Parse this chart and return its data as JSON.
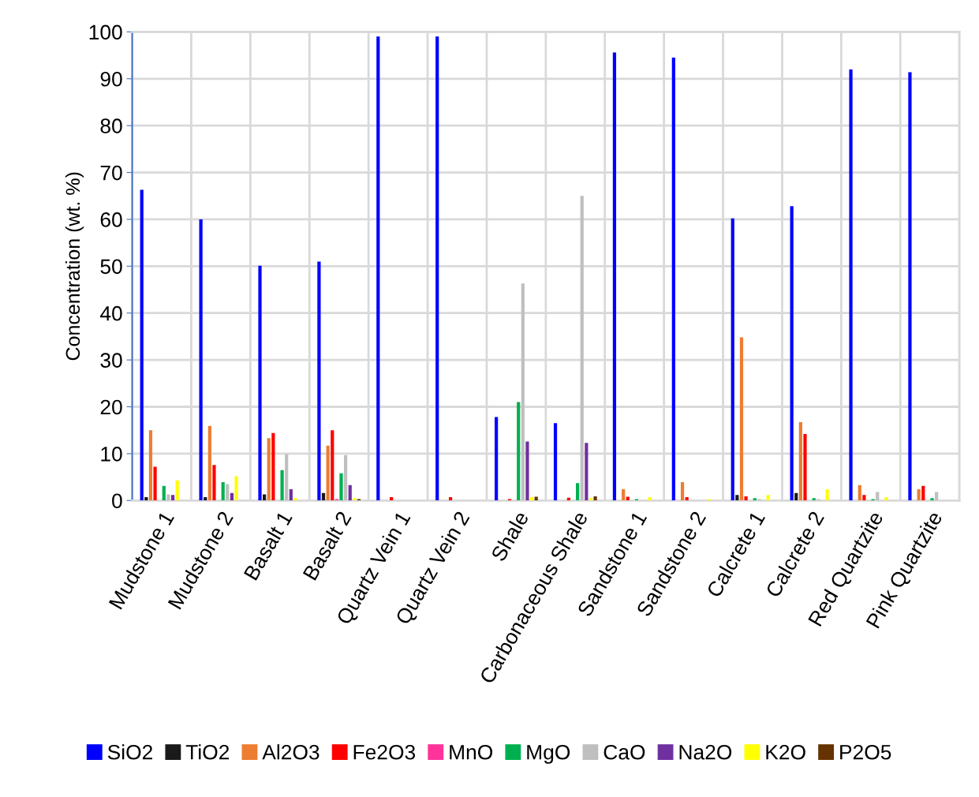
{
  "chart_data": {
    "type": "bar",
    "ylabel": "Concentration (wt. %)",
    "categories": [
      "Mudstone 1",
      "Mudstone 2",
      "Basalt 1",
      "Basalt 2",
      "Quartz Vein 1",
      "Quartz Vein 2",
      "Shale",
      "Carbonaceous Shale",
      "Sandstone 1",
      "Sandstone 2",
      "Calcrete 1",
      "Calcrete 2",
      "Red Quartzite",
      "Pink Quartzite"
    ],
    "series": [
      {
        "name": "SiO2",
        "color": "#0000ff",
        "values": [
          66.3,
          60,
          50.1,
          51,
          99,
          99,
          17.8,
          16.5,
          95.6,
          94.5,
          60.2,
          62.8,
          92,
          91.4
        ]
      },
      {
        "name": "TiO2",
        "color": "#1a1a1a",
        "values": [
          0.7,
          0.7,
          1.3,
          1.6,
          0,
          0,
          0,
          0,
          0,
          0,
          1.2,
          1.6,
          0,
          0
        ]
      },
      {
        "name": "Al2O3",
        "color": "#ed7d31",
        "values": [
          15,
          15.9,
          13.3,
          11.7,
          0,
          0,
          0,
          0,
          2.4,
          3.9,
          34.8,
          16.7,
          3.3,
          2.4
        ]
      },
      {
        "name": "Fe2O3",
        "color": "#ff0000",
        "values": [
          7.2,
          7.6,
          14.4,
          15,
          0.7,
          0.7,
          0.3,
          0.6,
          0.8,
          0.7,
          0.9,
          14.2,
          1.2,
          3.1
        ]
      },
      {
        "name": "MnO",
        "color": "#ff3399",
        "values": [
          0,
          0,
          0,
          0.3,
          0,
          0,
          0,
          0,
          0,
          0,
          0,
          0,
          0,
          0
        ]
      },
      {
        "name": "MgO",
        "color": "#00b050",
        "values": [
          3.1,
          3.9,
          6.5,
          5.8,
          0,
          0,
          21,
          3.7,
          0.3,
          0,
          0.5,
          0.5,
          0.3,
          0.5
        ]
      },
      {
        "name": "CaO",
        "color": "#bfbfbf",
        "values": [
          1.3,
          3.5,
          9.9,
          9.7,
          0,
          0,
          46.3,
          65,
          0,
          0,
          0.3,
          0.3,
          1.8,
          1.8
        ]
      },
      {
        "name": "Na2O",
        "color": "#7030a0",
        "values": [
          1.2,
          1.6,
          2.4,
          3.3,
          0,
          0,
          12.6,
          12.3,
          0,
          0,
          0,
          0,
          0,
          0
        ]
      },
      {
        "name": "K2O",
        "color": "#ffff00",
        "values": [
          4.3,
          5.2,
          0.5,
          0.5,
          0,
          0,
          0.7,
          0.5,
          0.7,
          0.3,
          1.2,
          2.4,
          0.7,
          0
        ]
      },
      {
        "name": "P2O5",
        "color": "#663300",
        "values": [
          0,
          0,
          0,
          0.3,
          0,
          0,
          0.8,
          0.9,
          0,
          0,
          0,
          0,
          0,
          0
        ]
      }
    ],
    "ylim": [
      0,
      100
    ],
    "yticks": [
      0,
      10,
      20,
      30,
      40,
      50,
      60,
      70,
      80,
      90,
      100
    ],
    "grid": true,
    "legend": "bottom"
  }
}
